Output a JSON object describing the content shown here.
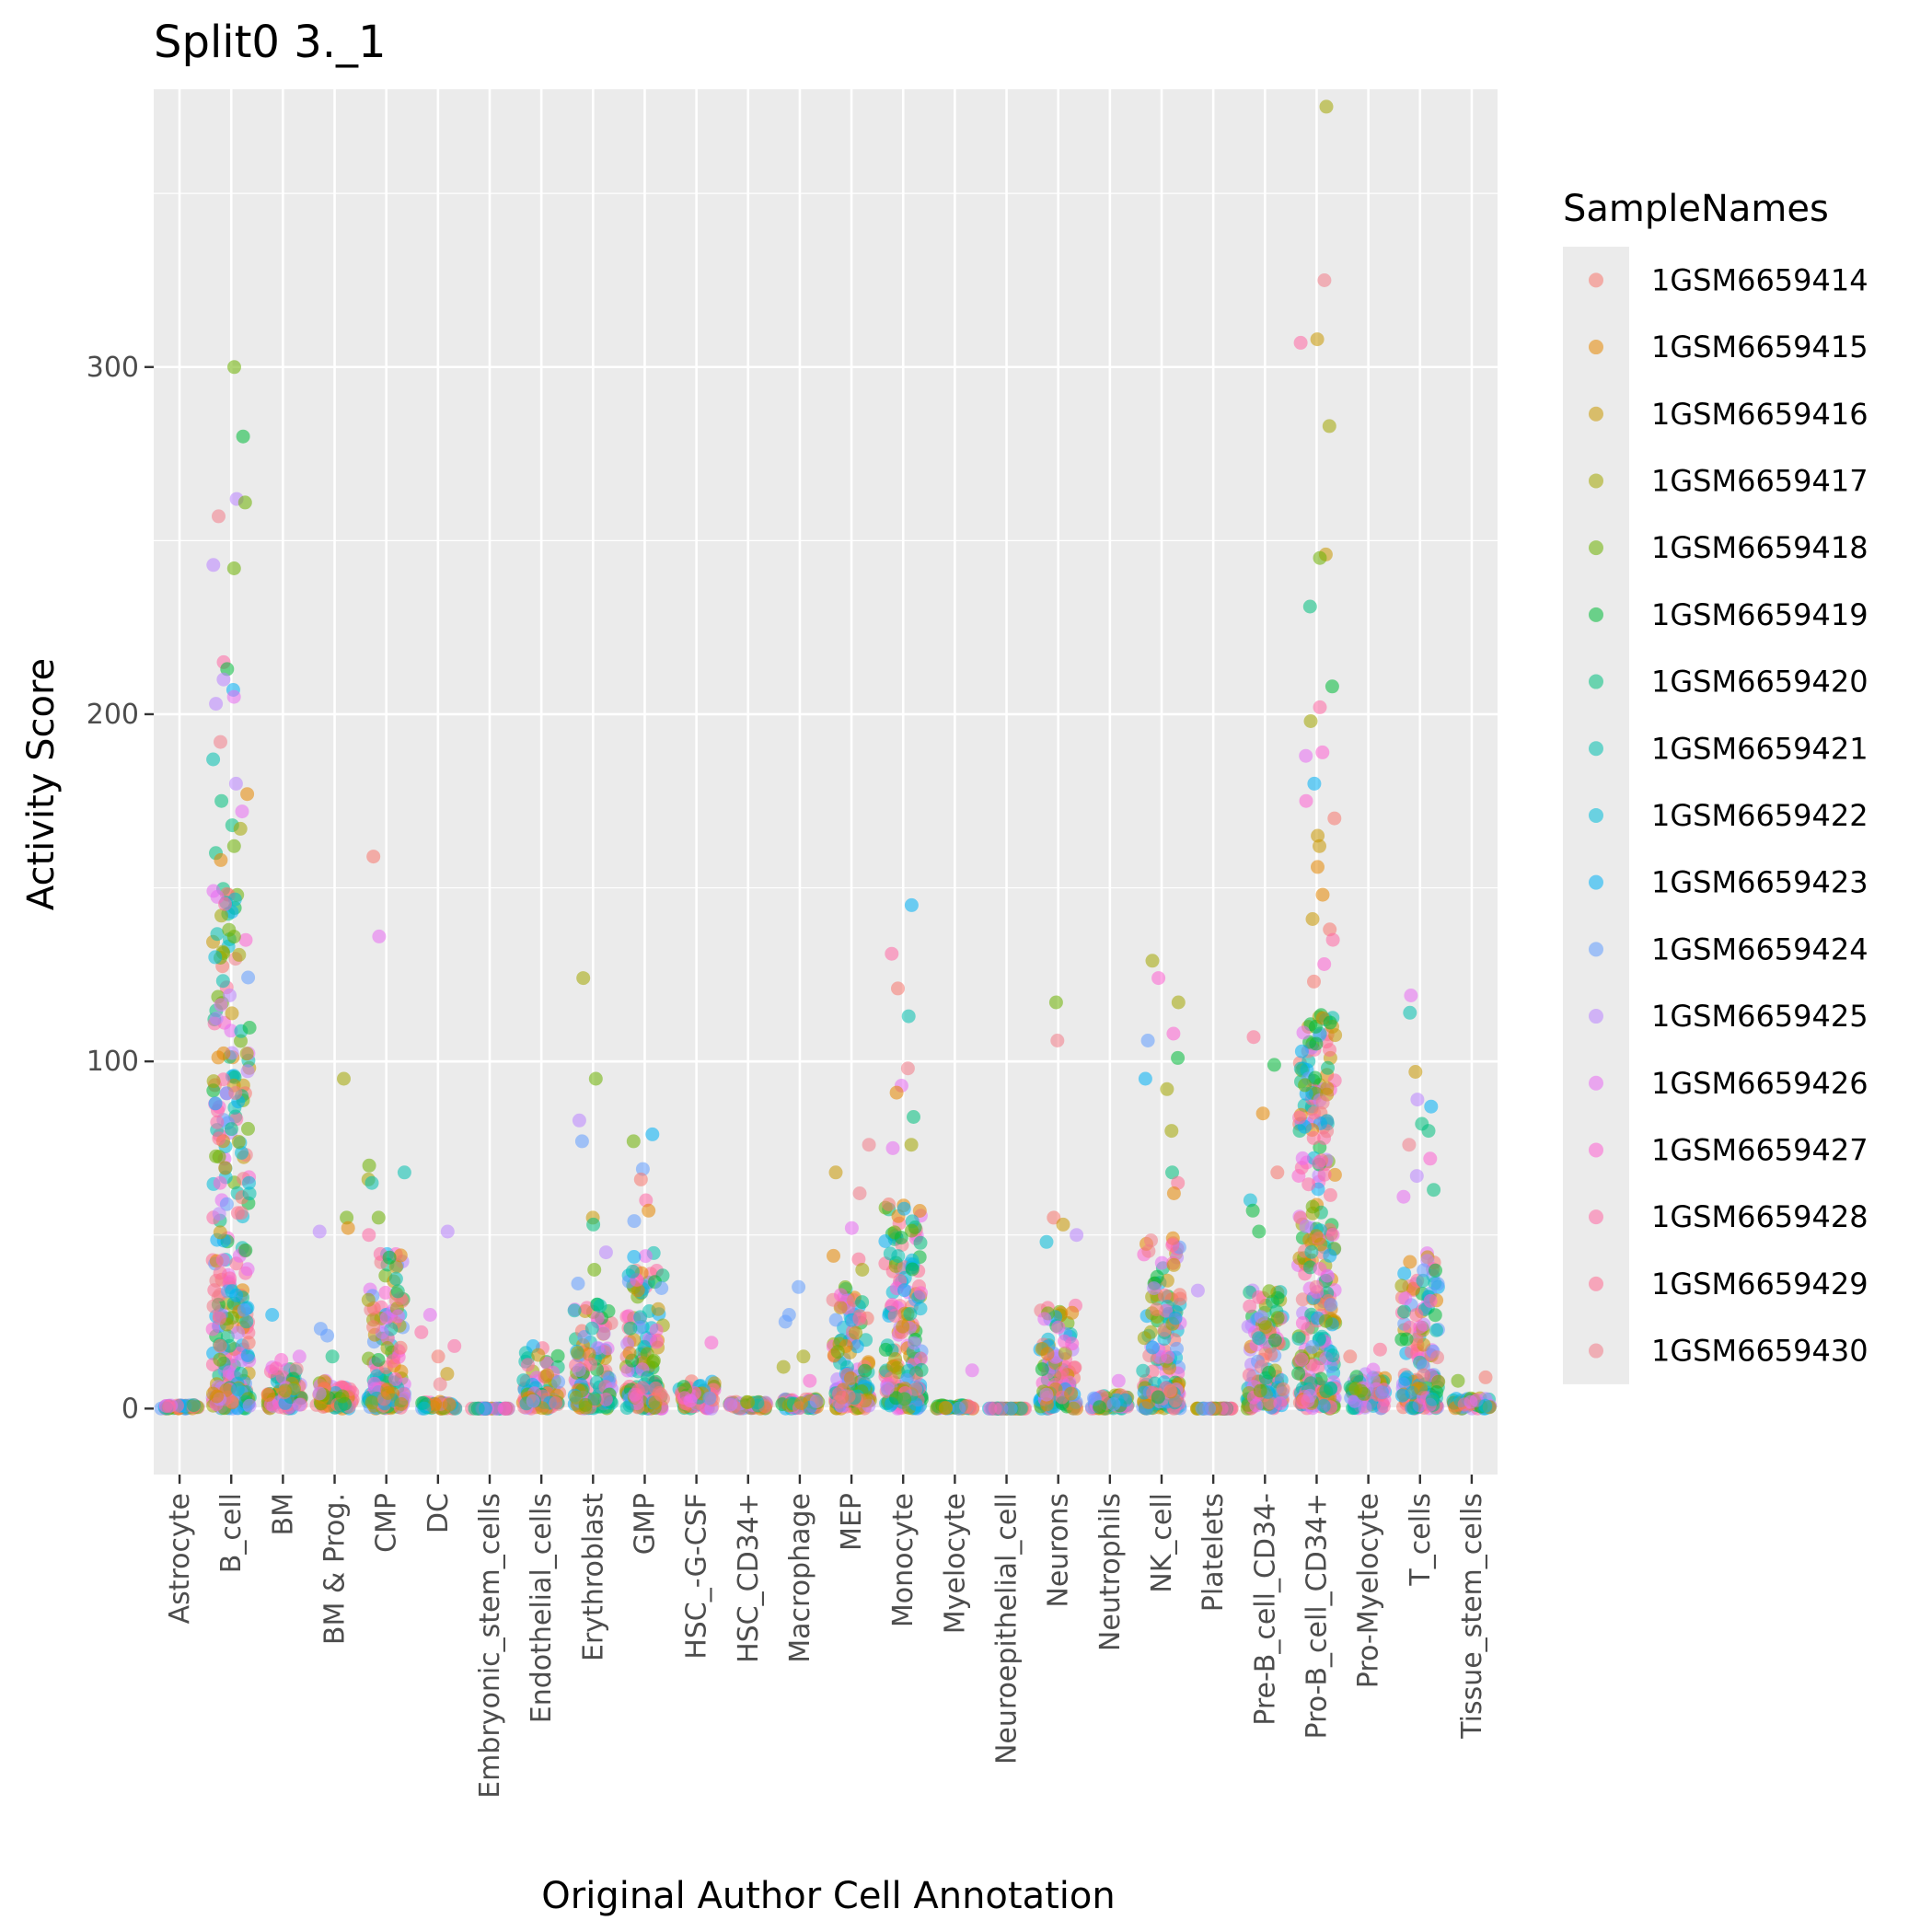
{
  "chart_data": {
    "type": "scatter",
    "title": "Split0 3._1",
    "xlabel": "Original Author Cell Annotation",
    "ylabel": "Activity Score",
    "ylim": [
      -19,
      380
    ],
    "yticks": [
      0,
      100,
      200,
      300
    ],
    "grid": true,
    "legend": {
      "title": "SampleNames",
      "placement": "right"
    },
    "categories": [
      "Astrocyte",
      "B_cell",
      "BM",
      "BM & Prog.",
      "CMP",
      "DC",
      "Embryonic_stem_cells",
      "Endothelial_cells",
      "Erythroblast",
      "GMP",
      "HSC_-G-CSF",
      "HSC_CD34+",
      "Macrophage",
      "MEP",
      "Monocyte",
      "Myelocyte",
      "Neuroepithelial_cell",
      "Neurons",
      "Neutrophils",
      "NK_cell",
      "Platelets",
      "Pre-B_cell_CD34-",
      "Pro-B_cell_CD34+",
      "Pro-Myelocyte",
      "T_cells",
      "Tissue_stem_cells"
    ],
    "series": [
      {
        "name": "1GSM6659414",
        "color": "#F8766D"
      },
      {
        "name": "1GSM6659415",
        "color": "#E58700"
      },
      {
        "name": "1GSM6659416",
        "color": "#C99800"
      },
      {
        "name": "1GSM6659417",
        "color": "#A3A500"
      },
      {
        "name": "1GSM6659418",
        "color": "#6BB100"
      },
      {
        "name": "1GSM6659419",
        "color": "#00BA38"
      },
      {
        "name": "1GSM6659420",
        "color": "#00BF7D"
      },
      {
        "name": "1GSM6659421",
        "color": "#00C0AF"
      },
      {
        "name": "1GSM6659422",
        "color": "#00BCD8"
      },
      {
        "name": "1GSM6659423",
        "color": "#00B0F6"
      },
      {
        "name": "1GSM6659424",
        "color": "#619CFF"
      },
      {
        "name": "1GSM6659425",
        "color": "#B983FF"
      },
      {
        "name": "1GSM6659426",
        "color": "#E76BF3"
      },
      {
        "name": "1GSM6659427",
        "color": "#FD61D1"
      },
      {
        "name": "1GSM6659428",
        "color": "#FF67A4"
      },
      {
        "name": "1GSM6659429",
        "color": "#FF6C91"
      },
      {
        "name": "1GSM6659430",
        "color": "#F37B89"
      }
    ],
    "category_summary": [
      {
        "category": "Astrocyte",
        "max": 3,
        "dense_top": 1,
        "outliers": []
      },
      {
        "category": "B_cell",
        "max": 300,
        "dense_top": 150,
        "outliers": [
          300,
          280,
          262,
          261,
          257,
          243,
          242,
          215,
          213,
          210,
          207,
          205,
          203,
          192,
          187,
          180,
          177,
          175,
          172,
          168,
          167,
          162,
          160,
          158
        ]
      },
      {
        "category": "BM",
        "max": 27,
        "dense_top": 12,
        "outliers": [
          27,
          15,
          14
        ]
      },
      {
        "category": "BM & Prog.",
        "max": 95,
        "dense_top": 8,
        "outliers": [
          95,
          55,
          52,
          51,
          23,
          21,
          15
        ]
      },
      {
        "category": "CMP",
        "max": 159,
        "dense_top": 45,
        "outliers": [
          159,
          136,
          70,
          68,
          66,
          65,
          55,
          50
        ]
      },
      {
        "category": "DC",
        "max": 51,
        "dense_top": 2,
        "outliers": [
          51,
          27,
          22,
          18,
          15,
          10,
          7,
          0
        ]
      },
      {
        "category": "Embryonic_stem_cells",
        "max": 1,
        "dense_top": 0,
        "outliers": []
      },
      {
        "category": "Endothelial_cells",
        "max": 18,
        "dense_top": 18,
        "outliers": []
      },
      {
        "category": "Erythroblast",
        "max": 124,
        "dense_top": 30,
        "outliers": [
          124,
          95,
          83,
          77,
          55,
          53,
          45,
          40,
          36
        ]
      },
      {
        "category": "GMP",
        "max": 79,
        "dense_top": 45,
        "outliers": [
          79,
          77,
          69,
          66,
          60,
          57,
          54
        ]
      },
      {
        "category": "HSC_-G-CSF",
        "max": 19,
        "dense_top": 8,
        "outliers": [
          19
        ]
      },
      {
        "category": "HSC_CD34+",
        "max": 4,
        "dense_top": 2,
        "outliers": []
      },
      {
        "category": "Macrophage",
        "max": 35,
        "dense_top": 3,
        "outliers": [
          35,
          27,
          25,
          15,
          12,
          8
        ]
      },
      {
        "category": "MEP",
        "max": 76,
        "dense_top": 35,
        "outliers": [
          76,
          68,
          62,
          52,
          44,
          43,
          40
        ]
      },
      {
        "category": "Monocyte",
        "max": 145,
        "dense_top": 60,
        "outliers": [
          145,
          131,
          121,
          113,
          98,
          93,
          91,
          84,
          76,
          75
        ]
      },
      {
        "category": "Myelocyte",
        "max": 11,
        "dense_top": 1,
        "outliers": [
          11
        ]
      },
      {
        "category": "Neuroepithelial_cell",
        "max": 0,
        "dense_top": 0,
        "outliers": []
      },
      {
        "category": "Neurons",
        "max": 117,
        "dense_top": 30,
        "outliers": [
          117,
          106,
          55,
          53,
          50,
          48
        ]
      },
      {
        "category": "Neutrophils",
        "max": 8,
        "dense_top": 4,
        "outliers": [
          8
        ]
      },
      {
        "category": "NK_cell",
        "max": 129,
        "dense_top": 50,
        "outliers": [
          129,
          124,
          117,
          108,
          106,
          101,
          95,
          92,
          80,
          68,
          65,
          62
        ]
      },
      {
        "category": "Platelets",
        "max": 34,
        "dense_top": 0,
        "outliers": [
          34
        ]
      },
      {
        "category": "Pre-B_cell_CD34-",
        "max": 107,
        "dense_top": 35,
        "outliers": [
          107,
          99,
          85,
          68,
          60,
          57,
          51
        ]
      },
      {
        "category": "Pro-B_cell_CD34+",
        "max": 375,
        "dense_top": 115,
        "outliers": [
          375,
          325,
          308,
          307,
          283,
          246,
          245,
          231,
          208,
          202,
          198,
          189,
          188,
          180,
          175,
          170,
          165,
          162,
          156,
          148,
          141,
          138,
          135,
          128,
          123
        ]
      },
      {
        "category": "Pro-Myelocyte",
        "max": 17,
        "dense_top": 12,
        "outliers": [
          17,
          15
        ]
      },
      {
        "category": "T_cells",
        "max": 119,
        "dense_top": 45,
        "outliers": [
          119,
          114,
          97,
          89,
          87,
          82,
          80,
          76,
          72,
          67,
          63,
          61
        ]
      },
      {
        "category": "Tissue_stem_cells",
        "max": 9,
        "dense_top": 3,
        "outliers": [
          9,
          8
        ]
      }
    ]
  }
}
